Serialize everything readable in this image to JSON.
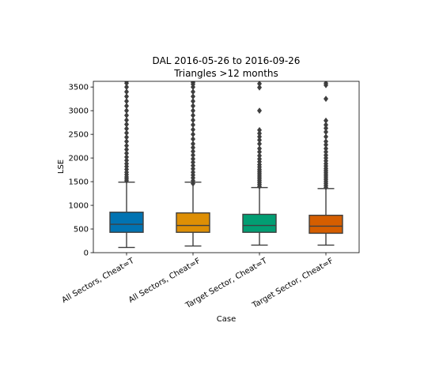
{
  "chart_data": {
    "type": "box",
    "title": "DAL 2016-05-26 to 2016-09-26",
    "subtitle": "Triangles >12 months",
    "xlabel": "Case",
    "ylabel": "LSE",
    "ylim": [
      0,
      3620
    ],
    "yticks": [
      0,
      500,
      1000,
      1500,
      2000,
      2500,
      3000,
      3500
    ],
    "grid": false,
    "categories": [
      "All Sectors, Cheat=T",
      "All Sectors, Cheat=F",
      "Target Sector, Cheat=T",
      "Target Sector, Cheat=F"
    ],
    "colors": [
      "#0173b2",
      "#de8f05",
      "#029e73",
      "#d55e00"
    ],
    "boxes": [
      {
        "whisker_low": 110,
        "q1": 430,
        "median": 600,
        "q3": 855,
        "whisker_high": 1490,
        "outliers": [
          1520,
          1560,
          1600,
          1650,
          1700,
          1760,
          1820,
          1880,
          1950,
          2020,
          2100,
          2180,
          2260,
          2350,
          2440,
          2530,
          2620,
          2710,
          2800,
          2900,
          3000,
          3100,
          3200,
          3300,
          3400,
          3500,
          3580,
          3620
        ]
      },
      {
        "whisker_low": 140,
        "q1": 430,
        "median": 575,
        "q3": 840,
        "whisker_high": 1490,
        "outliers": [
          1460,
          1520,
          1580,
          1640,
          1700,
          1770,
          1840,
          1910,
          1980,
          2060,
          2140,
          2220,
          2300,
          2400,
          2500,
          2600,
          2700,
          2800,
          2900,
          3000,
          3100,
          3200,
          3300,
          3400,
          3500,
          3560,
          3600
        ]
      },
      {
        "whisker_low": 160,
        "q1": 430,
        "median": 575,
        "q3": 810,
        "whisker_high": 1375,
        "outliers": [
          1400,
          1440,
          1480,
          1520,
          1560,
          1600,
          1640,
          1680,
          1720,
          1760,
          1810,
          1860,
          1920,
          1980,
          2050,
          2130,
          2200,
          2300,
          2380,
          2450,
          2520,
          2590,
          3000,
          3490,
          3570
        ]
      },
      {
        "whisker_low": 160,
        "q1": 410,
        "median": 560,
        "q3": 790,
        "whisker_high": 1355,
        "outliers": [
          1380,
          1420,
          1460,
          1500,
          1540,
          1580,
          1620,
          1660,
          1700,
          1740,
          1780,
          1830,
          1880,
          1940,
          2000,
          2060,
          2130,
          2200,
          2280,
          2350,
          2450,
          2550,
          2630,
          2700,
          2790,
          3250,
          3540,
          3580
        ]
      }
    ]
  }
}
